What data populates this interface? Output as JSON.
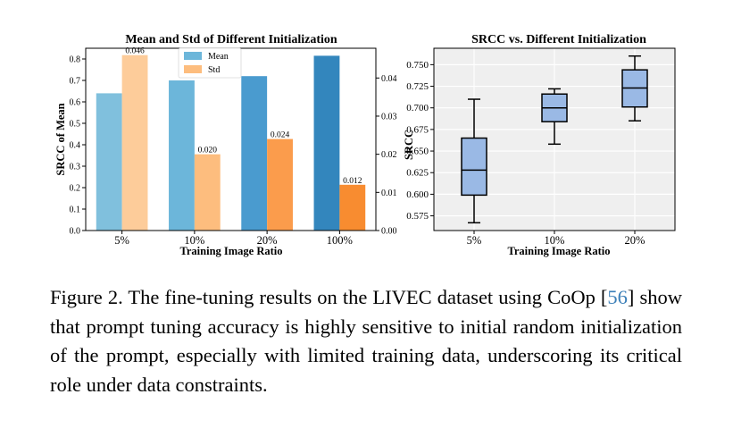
{
  "charts": [
    {
      "type": "bar",
      "title": "Mean and Std of Different Initialization",
      "xlabel": "Training Image Ratio",
      "ylabel": "SRCC of Mean",
      "ylabel_right": "",
      "categories": [
        "5%",
        "10%",
        "20%",
        "100%"
      ],
      "series": [
        {
          "name": "Mean",
          "axis": "left",
          "values": [
            0.64,
            0.7,
            0.72,
            0.815
          ],
          "colors": [
            "#80c0dd",
            "#6cb6da",
            "#4a9bcf",
            "#3386bd"
          ]
        },
        {
          "name": "Std",
          "axis": "right",
          "values": [
            0.046,
            0.02,
            0.024,
            0.012
          ],
          "labels": [
            "0.046",
            "0.020",
            "0.024",
            "0.012"
          ],
          "colors": [
            "#fdcc9a",
            "#fdbd7e",
            "#fb9c4c",
            "#f88c30"
          ]
        }
      ],
      "ylim": [
        0,
        0.85
      ],
      "yticks": [
        "0.0",
        "0.1",
        "0.2",
        "0.3",
        "0.4",
        "0.5",
        "0.6",
        "0.7",
        "0.8"
      ],
      "ylim_right": [
        0,
        0.0478
      ],
      "yticks_right": [
        "0.00",
        "0.01",
        "0.02",
        "0.03",
        "0.04"
      ],
      "legend": {
        "position": "top-center",
        "entries": [
          "Mean",
          "Std"
        ],
        "colors": [
          "#6cb6da",
          "#fdbd7e"
        ]
      },
      "grid": false
    },
    {
      "type": "box",
      "title": "SRCC vs. Different Initialization",
      "xlabel": "Training Image Ratio",
      "ylabel": "SRCC",
      "categories": [
        "5%",
        "10%",
        "20%"
      ],
      "boxes": [
        {
          "min": 0.567,
          "q1": 0.599,
          "median": 0.628,
          "q3": 0.665,
          "max": 0.71
        },
        {
          "min": 0.658,
          "q1": 0.684,
          "median": 0.7,
          "q3": 0.716,
          "max": 0.722
        },
        {
          "min": 0.685,
          "q1": 0.701,
          "median": 0.723,
          "q3": 0.744,
          "max": 0.76
        }
      ],
      "ylim": [
        0.558,
        0.769
      ],
      "yticks": [
        "0.575",
        "0.600",
        "0.625",
        "0.650",
        "0.675",
        "0.700",
        "0.725",
        "0.750"
      ],
      "box_color": "#9ab9e5",
      "background": "#efefef",
      "grid": true
    }
  ],
  "caption": {
    "prefix": "Figure 2.  The fine-tuning results on the LIVEC dataset using CoOp [",
    "ref": "56",
    "suffix": "] show that prompt tuning accuracy is highly sensitive to initial random initialization of the prompt, especially with limited training data, underscoring its critical role under data constraints."
  }
}
